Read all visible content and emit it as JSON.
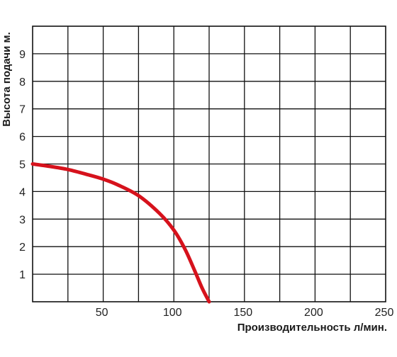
{
  "chart_data": {
    "type": "line",
    "title": "",
    "xlabel": "Производительность л/мин.",
    "ylabel": "Высота подачи м.",
    "xlim": [
      0,
      250
    ],
    "ylim": [
      0,
      10
    ],
    "x_ticks": [
      50,
      100,
      150,
      200,
      250
    ],
    "y_ticks": [
      1,
      2,
      3,
      4,
      5,
      6,
      7,
      8,
      9
    ],
    "x_grid_step": 25,
    "y_grid_step": 1,
    "grid": true,
    "series": [
      {
        "color": "#d6121c",
        "points": [
          [
            0,
            5.0
          ],
          [
            10,
            4.93
          ],
          [
            25,
            4.8
          ],
          [
            40,
            4.6
          ],
          [
            50,
            4.45
          ],
          [
            60,
            4.25
          ],
          [
            75,
            3.85
          ],
          [
            90,
            3.2
          ],
          [
            100,
            2.6
          ],
          [
            108,
            1.9
          ],
          [
            115,
            1.1
          ],
          [
            120,
            0.5
          ],
          [
            125,
            0.0
          ]
        ]
      }
    ]
  }
}
